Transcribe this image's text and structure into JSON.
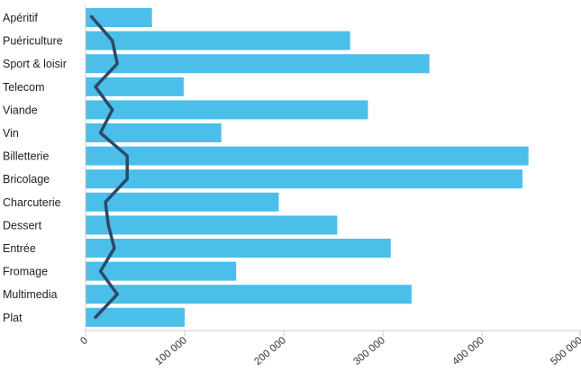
{
  "chart_data": {
    "type": "bar",
    "orientation": "horizontal",
    "categories": [
      "Apéritif",
      "Puériculture",
      "Sport & loisir",
      "Telecom",
      "Viande",
      "Vin",
      "Billetterie",
      "Bricolage",
      "Charcuterie",
      "Dessert",
      "Entrée",
      "Fromage",
      "Multimedia",
      "Plat"
    ],
    "series": [
      {
        "type": "bar",
        "color": "#4bbfea",
        "values": [
          67000,
          267000,
          347000,
          99000,
          285000,
          137000,
          447000,
          441000,
          195000,
          254000,
          308000,
          152000,
          329000,
          100000
        ]
      },
      {
        "type": "line",
        "color": "#2c4a66",
        "values": [
          6000,
          27000,
          32000,
          10000,
          27000,
          15000,
          42000,
          42000,
          20000,
          23000,
          29000,
          15000,
          32000,
          10000
        ]
      }
    ],
    "xlim": [
      0,
      500000
    ],
    "xticks": [
      0,
      100000,
      200000,
      300000,
      400000,
      500000
    ],
    "xtick_labels": [
      "0",
      "100 000",
      "200 000",
      "300 000",
      "400 000",
      "500 000"
    ],
    "title": "",
    "xlabel": "",
    "ylabel": "",
    "grid": false,
    "legend": "none"
  }
}
